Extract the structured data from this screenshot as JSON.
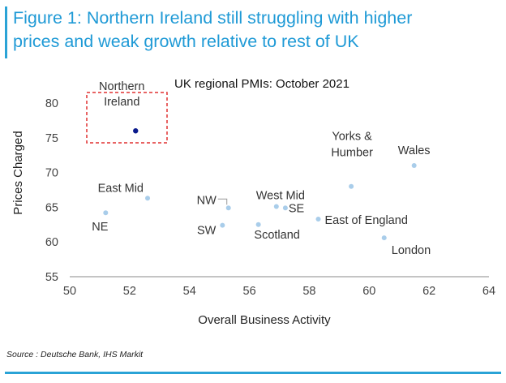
{
  "figure": {
    "heading_line1": "Figure 1: Northern Ireland still struggling with higher",
    "heading_line2": "prices and weak growth relative to rest of UK",
    "source": "Source : Deutsche Bank, IHS Markit",
    "accent_color": "#2aa3d6"
  },
  "chart_data": {
    "type": "scatter",
    "title": "UK regional PMIs: October 2021",
    "xlabel": "Overall Business Activity",
    "ylabel": "Prices Charged",
    "xlim": [
      50,
      64
    ],
    "ylim": [
      55,
      80
    ],
    "xticks": [
      50,
      52,
      54,
      56,
      58,
      60,
      62,
      64
    ],
    "yticks": [
      55,
      60,
      65,
      70,
      75,
      80
    ],
    "grid": false,
    "point_color": "#a9cdea",
    "highlight_color": "#0a1a8c",
    "highlight_box_color": "#e03030",
    "points": [
      {
        "label": "Northern Ireland",
        "x": 52.2,
        "y": 76.0,
        "highlight": true
      },
      {
        "label": "NE",
        "x": 51.2,
        "y": 64.2
      },
      {
        "label": "East Mid",
        "x": 52.6,
        "y": 66.3
      },
      {
        "label": "NW",
        "x": 55.3,
        "y": 64.9
      },
      {
        "label": "SW",
        "x": 55.1,
        "y": 62.4
      },
      {
        "label": "Scotland",
        "x": 56.3,
        "y": 62.5
      },
      {
        "label": "West Mid",
        "x": 56.9,
        "y": 65.1
      },
      {
        "label": "SE",
        "x": 57.2,
        "y": 64.9
      },
      {
        "label": "East of England",
        "x": 58.3,
        "y": 63.3
      },
      {
        "label": "Yorks & Humber",
        "x": 59.4,
        "y": 68.0
      },
      {
        "label": "London",
        "x": 60.5,
        "y": 60.6
      },
      {
        "label": "Wales",
        "x": 61.5,
        "y": 71.0
      }
    ]
  }
}
